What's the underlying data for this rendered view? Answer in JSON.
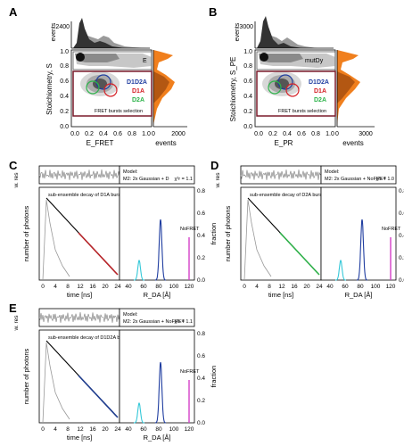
{
  "panels": {
    "A": {
      "letter": "A",
      "top_ytick": "2400",
      "top_ylabel": "events",
      "ylabel": "Stoichiometry, S",
      "xlabel": "E_FRET",
      "right_xlabel": "events",
      "right_xtick": "2000",
      "box_label": "E",
      "yticks": [
        "0.0",
        "0.2",
        "0.4",
        "0.6",
        "0.8",
        "1.0"
      ],
      "xticks": [
        "0.0",
        "0.2",
        "0.4",
        "0.6",
        "0.8",
        "1.0"
      ],
      "right_ticks": [
        "0",
        "2000"
      ],
      "legend": [
        "D1D2A",
        "D1A",
        "D2A"
      ],
      "selection_label": "FRET bursts selection"
    },
    "B": {
      "letter": "B",
      "top_ytick": "3000",
      "top_ylabel": "events",
      "ylabel": "Stoichiometry, S_PE",
      "xlabel": "E_PR",
      "right_xlabel": "events",
      "right_xtick": "3000",
      "box_label": "mutDy",
      "yticks": [
        "0.0",
        "0.2",
        "0.4",
        "0.6",
        "0.8",
        "1.0"
      ],
      "xticks": [
        "0.0",
        "0.2",
        "0.4",
        "0.6",
        "0.8",
        "1.0"
      ],
      "right_ticks": [
        "0",
        "3000"
      ],
      "legend": [
        "D1D2A",
        "D1A",
        "D2A"
      ],
      "selection_label": "FRET bursts selection"
    },
    "C": {
      "letter": "C",
      "wres_label": "w. res",
      "model_label": "Model:",
      "model_text": "M2: 2x Gaussian + D",
      "chi_label": "χ²r = 1.1",
      "decay_label": "sub-ensemble decay of D1A bursts",
      "ylabel": "number of photons",
      "xlabel": "time [ns]",
      "dist_xlabel": "R_DA [Å]",
      "fraction_label": "fraction",
      "nofret_label": "NoFRET",
      "xticks": [
        "0",
        "4",
        "8",
        "12",
        "16",
        "20",
        "24"
      ],
      "dist_xticks": [
        "40",
        "60",
        "80",
        "100",
        "120"
      ],
      "frac_ticks": [
        "0.0",
        "0.2",
        "0.4",
        "0.6",
        "0.8"
      ],
      "decay_color": "#b8252a"
    },
    "D": {
      "letter": "D",
      "wres_label": "w. res",
      "model_label": "Model:",
      "model_text": "M2: 2x Gaussian + NoFRET",
      "chi_label": "χ²r = 1.0",
      "decay_label": "sub-ensemble decay of D2A bursts",
      "ylabel": "number of photons",
      "xlabel": "time [ns]",
      "dist_xlabel": "R_DA [Å]",
      "fraction_label": "fraction",
      "nofret_label": "NoFRET",
      "xticks": [
        "0",
        "4",
        "8",
        "12",
        "16",
        "20",
        "24"
      ],
      "dist_xticks": [
        "40",
        "60",
        "80",
        "100",
        "120"
      ],
      "frac_ticks": [
        "0.0",
        "0.2",
        "0.4",
        "0.6",
        "0.8"
      ],
      "decay_color": "#2fb34a"
    },
    "E": {
      "letter": "E",
      "wres_label": "w. res",
      "model_label": "Model:",
      "model_text": "M2: 2x Gaussian + NoFRET",
      "chi_label": "χ²r = 1.1",
      "decay_label": "sub-ensemble decay of D1D2A bursts",
      "ylabel": "number of photons",
      "xlabel": "time [ns]",
      "dist_xlabel": "R_DA [Å]",
      "fraction_label": "fraction",
      "nofret_label": "NoFRET",
      "xticks": [
        "0",
        "4",
        "8",
        "12",
        "16",
        "20",
        "24"
      ],
      "dist_xticks": [
        "40",
        "60",
        "80",
        "100",
        "120"
      ],
      "frac_ticks": [
        "0.0",
        "0.2",
        "0.4",
        "0.6",
        "0.8"
      ],
      "decay_color": "#1f3d8f"
    }
  },
  "colors": {
    "histogram": "#555555",
    "orange": "#f07f1d",
    "selection_box": "#7a1a2a",
    "d1d2a": "#1f3da0",
    "d1a": "#d42026",
    "d2a": "#2db34a",
    "dist_cyan": "#35c8d8",
    "dist_blue": "#1f3da0",
    "nofret": "#d43fc8"
  }
}
